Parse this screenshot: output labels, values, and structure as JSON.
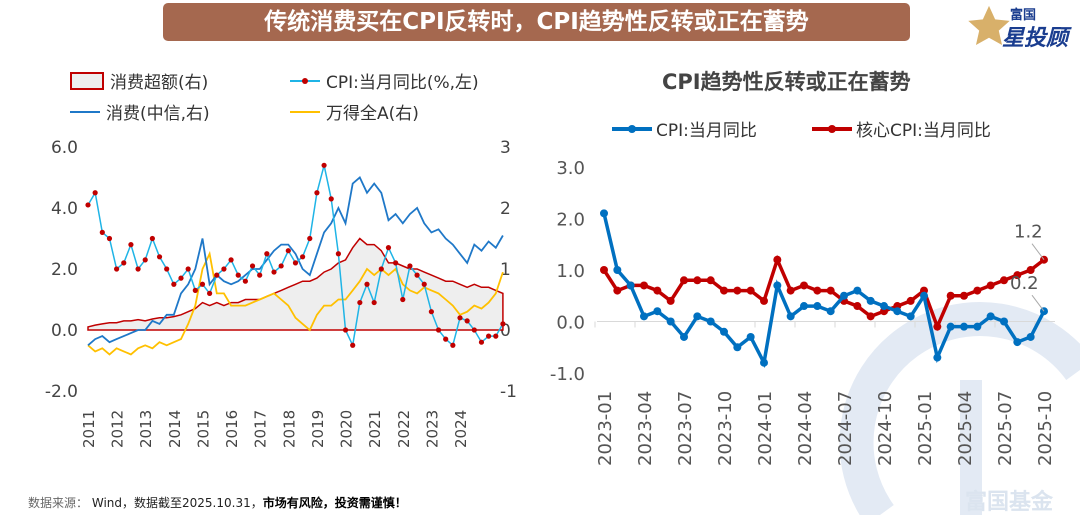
{
  "header": {
    "title": "传统消费买在CPI反转时，CPI趋势性反转或正在蓄势"
  },
  "logo": {
    "top": "富国",
    "bottom": "星投顾"
  },
  "watermark": "富国基金",
  "footer": {
    "source_label": "数据来源：",
    "source_text": "Wind，数据截至2025.10.31，",
    "risk": "市场有风险，投资需谨慎！"
  },
  "colors": {
    "banner": "#a5684f",
    "cpi_left": "#1fb4e6",
    "cpi_marker": "#c00000",
    "consumption": "#1f78c8",
    "wind_a": "#ffc000",
    "excess_fill": "#eeeeee",
    "excess_border": "#c00000",
    "cpi_right": "#0070c0",
    "core_cpi": "#c00000"
  },
  "chart_data": [
    {
      "type": "line",
      "title": "",
      "legend": [
        "消费超额(右)",
        "CPI:当月同比(%,左)",
        "消费(中信,右)",
        "万得全A(右)"
      ],
      "legend_placement": "top",
      "x_tick_labels": [
        "2011",
        "2012",
        "2013",
        "2014",
        "2015",
        "2016",
        "2017",
        "2018",
        "2019",
        "2020",
        "2021",
        "2022",
        "2023",
        "2024"
      ],
      "y_left": {
        "ticks": [
          "6.0",
          "4.0",
          "2.0",
          "0.0",
          "-2.0"
        ],
        "range": [
          -2,
          6
        ]
      },
      "y_right": {
        "ticks": [
          "3",
          "2",
          "1",
          "0",
          "-1"
        ],
        "range": [
          -1,
          3
        ]
      },
      "x_range": [
        2011.0,
        2025.8
      ],
      "x_step": "quarterly",
      "x_start": 2011.0,
      "series": [
        {
          "name": "CPI:当月同比(%,左)",
          "axis": "left",
          "values": [
            4.1,
            4.5,
            3.2,
            3.0,
            2.0,
            2.2,
            2.8,
            2.0,
            2.3,
            3.0,
            2.4,
            2.0,
            1.5,
            1.7,
            2.0,
            1.3,
            1.5,
            1.2,
            1.8,
            2.0,
            2.3,
            1.8,
            1.6,
            2.1,
            1.8,
            2.5,
            1.9,
            2.1,
            2.6,
            2.2,
            2.4,
            3.0,
            4.5,
            5.4,
            4.3,
            2.5,
            0.0,
            -0.5,
            0.9,
            1.5,
            0.9,
            2.0,
            2.7,
            2.2,
            1.0,
            2.1,
            1.8,
            1.5,
            0.6,
            0.0,
            -0.3,
            -0.5,
            0.4,
            0.3,
            0.0,
            -0.4,
            -0.2,
            -0.2,
            0.2
          ]
        },
        {
          "name": "消费(中信,右)",
          "axis": "right",
          "values": [
            -0.25,
            -0.15,
            -0.1,
            -0.2,
            -0.15,
            -0.1,
            -0.05,
            0.0,
            0.0,
            0.15,
            0.1,
            0.25,
            0.25,
            0.6,
            0.75,
            1.0,
            1.5,
            0.75,
            0.9,
            0.8,
            0.75,
            0.8,
            0.9,
            1.0,
            1.0,
            1.15,
            1.3,
            1.4,
            1.4,
            1.25,
            1.0,
            0.9,
            1.25,
            1.6,
            1.75,
            2.0,
            1.75,
            2.4,
            2.5,
            2.25,
            2.4,
            2.25,
            1.8,
            1.9,
            1.75,
            1.9,
            2.0,
            1.75,
            1.6,
            1.65,
            1.5,
            1.4,
            1.25,
            1.1,
            1.4,
            1.3,
            1.45,
            1.35,
            1.55
          ]
        },
        {
          "name": "万得全A(右)",
          "axis": "right",
          "values": [
            -0.25,
            -0.35,
            -0.3,
            -0.4,
            -0.3,
            -0.35,
            -0.4,
            -0.3,
            -0.25,
            -0.3,
            -0.2,
            -0.25,
            -0.2,
            -0.15,
            0.1,
            0.4,
            1.0,
            1.25,
            0.6,
            0.6,
            0.4,
            0.4,
            0.4,
            0.45,
            0.5,
            0.55,
            0.6,
            0.5,
            0.4,
            0.2,
            0.1,
            0.0,
            0.25,
            0.4,
            0.4,
            0.5,
            0.5,
            0.65,
            0.8,
            1.0,
            0.9,
            1.0,
            0.9,
            1.0,
            0.75,
            0.65,
            0.6,
            0.7,
            0.65,
            0.6,
            0.5,
            0.4,
            0.25,
            0.3,
            0.4,
            0.35,
            0.45,
            0.6,
            0.95
          ]
        },
        {
          "name": "消费超额(右)",
          "axis": "right",
          "type": "area",
          "values": [
            0.05,
            0.08,
            0.1,
            0.12,
            0.12,
            0.15,
            0.15,
            0.17,
            0.15,
            0.18,
            0.2,
            0.2,
            0.22,
            0.25,
            0.3,
            0.35,
            0.45,
            0.4,
            0.45,
            0.4,
            0.45,
            0.45,
            0.5,
            0.5,
            0.5,
            0.55,
            0.6,
            0.65,
            0.7,
            0.75,
            0.8,
            0.8,
            0.85,
            0.95,
            1.0,
            1.1,
            1.15,
            1.35,
            1.5,
            1.4,
            1.4,
            1.3,
            1.1,
            1.1,
            1.05,
            1.0,
            1.0,
            0.95,
            0.9,
            0.85,
            0.8,
            0.8,
            0.75,
            0.7,
            0.75,
            0.7,
            0.7,
            0.65,
            0.6
          ]
        }
      ]
    },
    {
      "type": "line",
      "title": "CPI趋势性反转或正在蓄势",
      "legend": [
        "CPI:当月同比",
        "核心CPI:当月同比"
      ],
      "legend_placement": "top",
      "x_tick_labels": [
        "2023-01",
        "2023-04",
        "2023-07",
        "2023-10",
        "2024-01",
        "2024-04",
        "2024-07",
        "2024-10",
        "2025-01",
        "2025-04",
        "2025-07",
        "2025-10"
      ],
      "y": {
        "ticks": [
          "3.0",
          "2.0",
          "1.0",
          "0.0",
          "-1.0"
        ],
        "range": [
          -1,
          3
        ]
      },
      "x": [
        "2023-01",
        "2023-02",
        "2023-03",
        "2023-04",
        "2023-05",
        "2023-06",
        "2023-07",
        "2023-08",
        "2023-09",
        "2023-10",
        "2023-11",
        "2023-12",
        "2024-01",
        "2024-02",
        "2024-03",
        "2024-04",
        "2024-05",
        "2024-06",
        "2024-07",
        "2024-08",
        "2024-09",
        "2024-10",
        "2024-11",
        "2024-12",
        "2025-01",
        "2025-02",
        "2025-03",
        "2025-04",
        "2025-05",
        "2025-06",
        "2025-07",
        "2025-08",
        "2025-09",
        "2025-10"
      ],
      "series": [
        {
          "name": "CPI:当月同比",
          "values": [
            2.1,
            1.0,
            0.7,
            0.1,
            0.2,
            0.0,
            -0.3,
            0.1,
            0.0,
            -0.2,
            -0.5,
            -0.3,
            -0.8,
            0.7,
            0.1,
            0.3,
            0.3,
            0.2,
            0.5,
            0.6,
            0.4,
            0.3,
            0.2,
            0.1,
            0.5,
            -0.7,
            -0.1,
            -0.1,
            -0.1,
            0.1,
            0.0,
            -0.4,
            -0.3,
            0.2
          ]
        },
        {
          "name": "核心CPI:当月同比",
          "values": [
            1.0,
            0.6,
            0.7,
            0.7,
            0.6,
            0.4,
            0.8,
            0.8,
            0.8,
            0.6,
            0.6,
            0.6,
            0.4,
            1.2,
            0.6,
            0.7,
            0.6,
            0.6,
            0.4,
            0.3,
            0.1,
            0.2,
            0.3,
            0.4,
            0.6,
            -0.1,
            0.5,
            0.5,
            0.6,
            0.7,
            0.8,
            0.9,
            1.0,
            1.2
          ]
        }
      ],
      "annotations": [
        "1.2",
        "0.2"
      ]
    }
  ]
}
